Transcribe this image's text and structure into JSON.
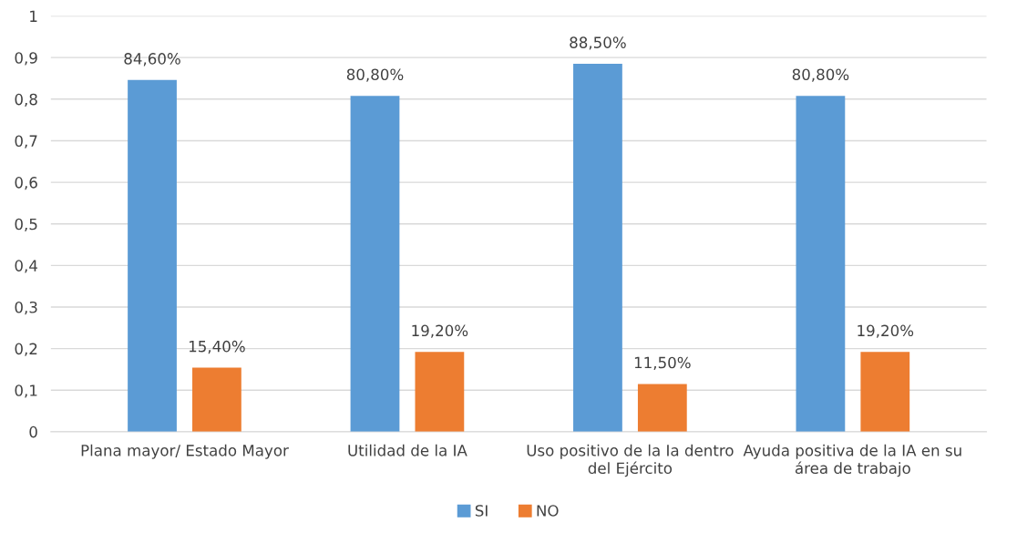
{
  "chart_data": {
    "type": "bar",
    "categories": [
      "Plana mayor/ Estado Mayor",
      "Utilidad de la IA",
      "Uso positivo de la Ia dentro\ndel Ejército",
      "Ayuda positiva de la IA en su\nárea de trabajo"
    ],
    "series": [
      {
        "name": "SI",
        "color": "#5b9bd5",
        "values": [
          0.846,
          0.808,
          0.885,
          0.808
        ],
        "value_labels": [
          "84,60%",
          "80,80%",
          "88,50%",
          "80,80%"
        ]
      },
      {
        "name": "NO",
        "color": "#ed7d31",
        "values": [
          0.154,
          0.192,
          0.115,
          0.192
        ],
        "value_labels": [
          "15,40%",
          "19,20%",
          "11,50%",
          "19,20%"
        ]
      }
    ],
    "ylim": [
      0,
      1
    ],
    "yticks": [
      0,
      {
        "value": 0.1,
        "label": "0,1"
      },
      {
        "value": 0.2,
        "label": "0,2"
      },
      {
        "value": 0.3,
        "label": "0,3"
      },
      {
        "value": 0.4,
        "label": "0,4"
      },
      {
        "value": 0.5,
        "label": "0,5"
      },
      {
        "value": 0.6,
        "label": "0,6"
      },
      {
        "value": 0.7,
        "label": "0,7"
      },
      {
        "value": 0.8,
        "label": "0,8"
      },
      {
        "value": 0.9,
        "label": "0,9"
      },
      1
    ],
    "grid": "y",
    "legend": "bottom"
  }
}
